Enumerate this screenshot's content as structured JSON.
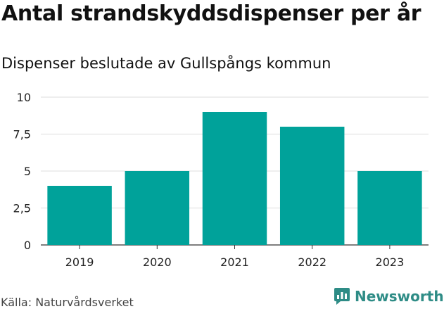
{
  "title": "Antal strandskyddsdispenser per år",
  "subtitle": "Dispenser beslutade av Gullspångs kommun",
  "source": "Källa: Naturvårdsverket",
  "brand": {
    "name": "Newsworthy",
    "icon": "newsworthy-logo-icon",
    "color": "#2e8c86"
  },
  "chart_data": {
    "type": "bar",
    "categories": [
      "2019",
      "2020",
      "2021",
      "2022",
      "2023"
    ],
    "values": [
      4,
      5,
      9,
      8,
      5
    ],
    "ylim": [
      0,
      10
    ],
    "yticks": [
      0,
      2.5,
      5,
      7.5,
      10
    ],
    "ytick_labels": [
      "0",
      "2,5",
      "5",
      "7,5",
      "10"
    ],
    "xlabel": "",
    "ylabel": "",
    "grid": true,
    "bar_color": "#00a29a"
  }
}
